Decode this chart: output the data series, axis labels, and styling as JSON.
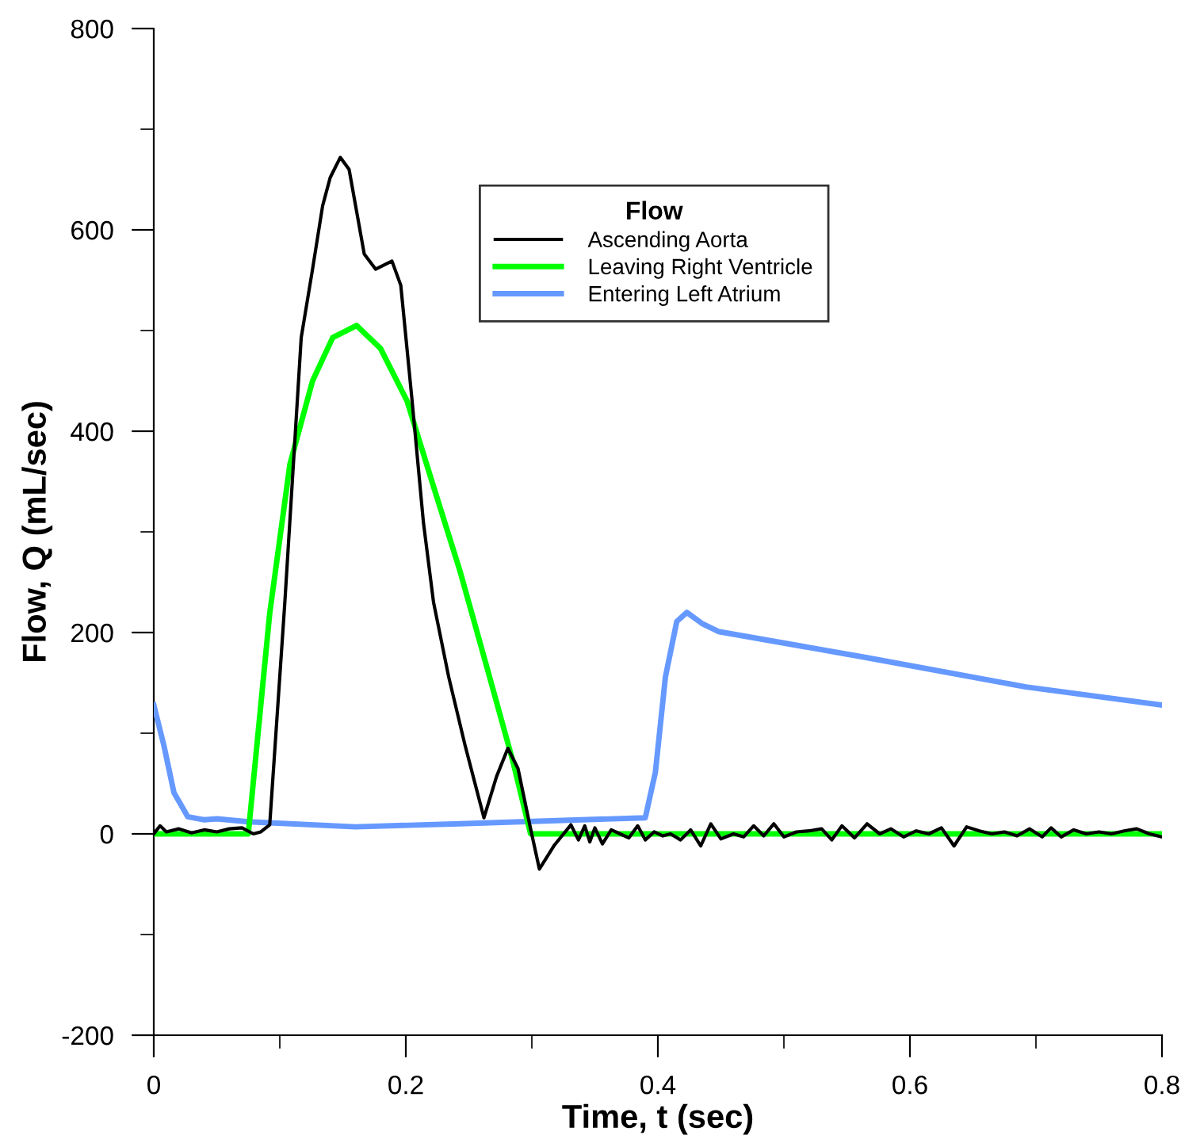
{
  "chart_data": {
    "type": "line",
    "xlabel": "Time, t (sec)",
    "ylabel": "Flow, Q (mL/sec)",
    "legend_title": "Flow",
    "legend": "top right",
    "grid": false,
    "marker": "none",
    "line_style": "solid",
    "xlim": [
      0,
      0.8
    ],
    "ylim": [
      -200,
      800
    ],
    "xticks": [
      0,
      {
        "value": 0.1,
        "label": null
      },
      0.2,
      {
        "value": 0.3,
        "label": null
      },
      0.4,
      {
        "value": 0.5,
        "label": null
      },
      0.6,
      {
        "value": 0.7,
        "label": null
      },
      0.8
    ],
    "yticks": [
      -200,
      {
        "value": -100,
        "label": null
      },
      0,
      {
        "value": 100,
        "label": null
      },
      200,
      {
        "value": 300,
        "label": null
      },
      400,
      {
        "value": 500,
        "label": null
      },
      600,
      {
        "value": 700,
        "label": null
      },
      800
    ],
    "series": [
      {
        "name": "Ascending Aorta",
        "color": "#000000",
        "x": [
          0,
          0.005,
          0.01,
          0.02,
          0.03,
          0.04,
          0.05,
          0.06,
          0.07,
          0.079,
          0.085,
          0.092,
          0.104,
          0.117,
          0.126,
          0.134,
          0.14,
          0.148,
          0.155,
          0.167,
          0.176,
          0.189,
          0.196,
          0.205,
          0.214,
          0.222,
          0.234,
          0.247,
          0.262,
          0.272,
          0.281,
          0.289,
          0.299,
          0.306,
          0.318,
          0.331,
          0.337,
          0.342,
          0.346,
          0.35,
          0.356,
          0.363,
          0.37,
          0.377,
          0.384,
          0.39,
          0.397,
          0.404,
          0.41,
          0.418,
          0.426,
          0.434,
          0.442,
          0.45,
          0.46,
          0.468,
          0.476,
          0.484,
          0.492,
          0.5,
          0.51,
          0.52,
          0.53,
          0.538,
          0.546,
          0.556,
          0.566,
          0.576,
          0.585,
          0.595,
          0.605,
          0.615,
          0.625,
          0.635,
          0.645,
          0.655,
          0.665,
          0.675,
          0.685,
          0.695,
          0.705,
          0.712,
          0.72,
          0.73,
          0.74,
          0.75,
          0.76,
          0.77,
          0.78,
          0.79,
          0.8
        ],
        "values": [
          0,
          8,
          2,
          5,
          1,
          4,
          2,
          5,
          6,
          0,
          2,
          9,
          230,
          493,
          561,
          624,
          652,
          672,
          660,
          576,
          561,
          569,
          545,
          430,
          309,
          230,
          156,
          88,
          16,
          57,
          85,
          65,
          5,
          -35,
          -11,
          9,
          -6,
          8,
          -8,
          6,
          -10,
          4,
          0,
          -4,
          8,
          -6,
          2,
          -2,
          0,
          -6,
          4,
          -12,
          10,
          -5,
          0,
          -3,
          8,
          -2,
          10,
          -3,
          2,
          3,
          5,
          -6,
          8,
          -4,
          10,
          0,
          5,
          -3,
          3,
          0,
          6,
          -12,
          7,
          3,
          0,
          2,
          -2,
          5,
          -3,
          6,
          -3,
          4,
          0,
          2,
          0,
          3,
          5,
          0,
          -3
        ]
      },
      {
        "name": "Leaving Right Ventricle",
        "color": "#00ff00",
        "x": [
          0,
          0.075,
          0.092,
          0.108,
          0.126,
          0.142,
          0.161,
          0.18,
          0.201,
          0.222,
          0.243,
          0.264,
          0.285,
          0.299,
          0.8
        ],
        "values": [
          0,
          0,
          219,
          367,
          450,
          493,
          505,
          482,
          430,
          345,
          261,
          167,
          72,
          0,
          0
        ]
      },
      {
        "name": "Entering Left Atrium",
        "color": "#6699ff",
        "x": [
          0,
          0.008,
          0.016,
          0.027,
          0.04,
          0.05,
          0.075,
          0.16,
          0.243,
          0.39,
          0.398,
          0.406,
          0.415,
          0.423,
          0.435,
          0.448,
          0.566,
          0.692,
          0.8
        ],
        "values": [
          128,
          88,
          41,
          17,
          14,
          15,
          12,
          7,
          10,
          16,
          61,
          156,
          211,
          220,
          209,
          201,
          175,
          146,
          128
        ]
      }
    ]
  }
}
